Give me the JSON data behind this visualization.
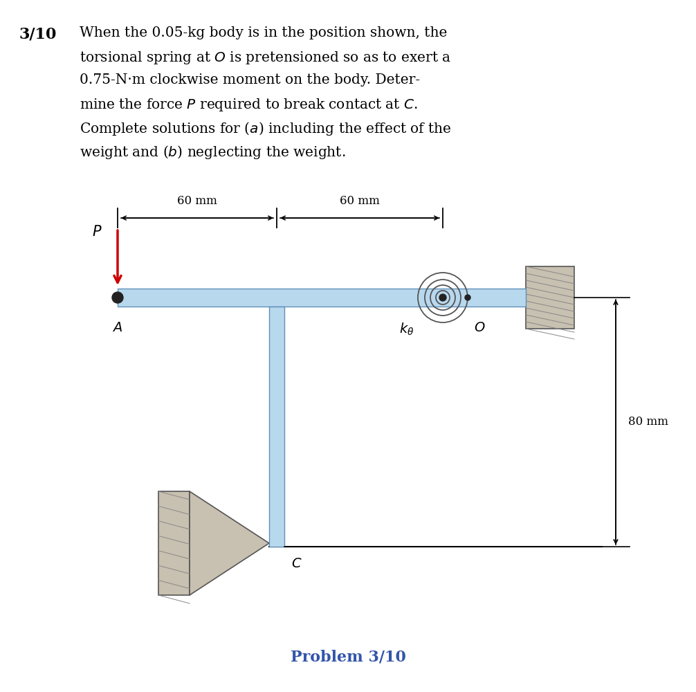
{
  "bg_color": "#ffffff",
  "text_color": "#000000",
  "body_color": "#b8d8ee",
  "wall_color": "#c8c0b0",
  "problem_number": "3/10",
  "footer_text": "Problem 3/10",
  "dim_60mm": "60 mm",
  "dim_80mm": "80 mm",
  "arrow_color": "#cc0000",
  "spring_color": "#555555",
  "label_color_blue": "#3355aa"
}
